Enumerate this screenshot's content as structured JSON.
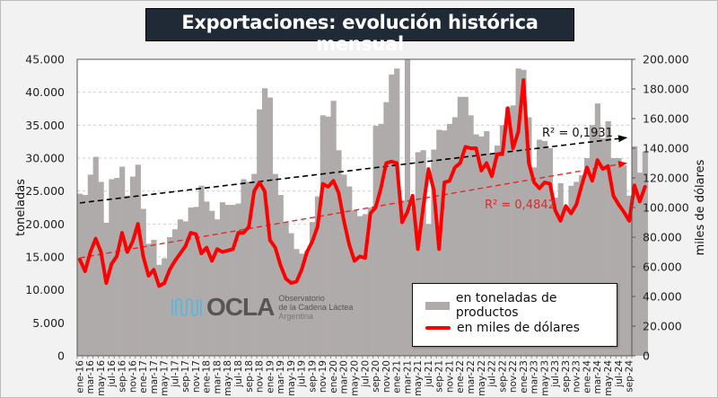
{
  "chart_data": {
    "type": "bar",
    "title": "Exportaciones: evolución histórica mensual",
    "xlabel": "",
    "ylabel": "toneladas",
    "y2label": "miles de dólares",
    "ylim": [
      0,
      45000
    ],
    "y2lim": [
      0,
      200000
    ],
    "yticks": [
      "0",
      "5.000",
      "10.000",
      "15.000",
      "20.000",
      "25.000",
      "30.000",
      "35.000",
      "40.000",
      "45.000"
    ],
    "y2ticks": [
      "0",
      "20.000",
      "40.000",
      "60.000",
      "80.000",
      "100.000",
      "120.000",
      "140.000",
      "160.000",
      "180.000",
      "200.000"
    ],
    "grid": true,
    "legend_position": "bottom-right",
    "categories": [
      "ene-16",
      "feb-16",
      "mar-16",
      "abr-16",
      "may-16",
      "jun-16",
      "jul-16",
      "ago-16",
      "sep-16",
      "oct-16",
      "nov-16",
      "dic-16",
      "ene-17",
      "feb-17",
      "mar-17",
      "abr-17",
      "may-17",
      "jun-17",
      "jul-17",
      "ago-17",
      "sep-17",
      "oct-17",
      "nov-17",
      "dic-17",
      "ene-18",
      "feb-18",
      "mar-18",
      "abr-18",
      "may-18",
      "jun-18",
      "jul-18",
      "ago-18",
      "sep-18",
      "oct-18",
      "nov-18",
      "dic-18",
      "ene-19",
      "feb-19",
      "mar-19",
      "abr-19",
      "may-19",
      "jun-19",
      "jul-19",
      "ago-19",
      "sep-19",
      "oct-19",
      "nov-19",
      "dic-19",
      "ene-20",
      "feb-20",
      "mar-20",
      "abr-20",
      "may-20",
      "jun-20",
      "jul-20",
      "ago-20",
      "sep-20",
      "oct-20",
      "nov-20",
      "dic-20",
      "ene-21",
      "feb-21",
      "mar-21",
      "abr-21",
      "may-21",
      "jun-21",
      "jul-21",
      "ago-21",
      "sep-21",
      "oct-21",
      "nov-21",
      "dic-21",
      "ene-22",
      "feb-22",
      "mar-22",
      "abr-22",
      "may-22",
      "jun-22",
      "jul-22",
      "ago-22",
      "sep-22",
      "oct-22",
      "nov-22",
      "dic-22",
      "ene-23",
      "feb-23",
      "mar-23",
      "abr-23",
      "may-23",
      "jun-23",
      "jul-23",
      "ago-23",
      "sep-23",
      "oct-23",
      "nov-23",
      "dic-23",
      "ene-24",
      "feb-24",
      "mar-24",
      "abr-24",
      "may-24",
      "jun-24",
      "jul-24",
      "ago-24",
      "sep-24"
    ],
    "xtick_labels": [
      "ene-16",
      "mar-16",
      "may-16",
      "jul-16",
      "sep-16",
      "nov-16",
      "ene-17",
      "mar-17",
      "may-17",
      "jul-17",
      "sep-17",
      "nov-17",
      "ene-18",
      "mar-18",
      "may-18",
      "jul-18",
      "sep-18",
      "nov-18",
      "ene-19",
      "mar-19",
      "may-19",
      "jul-19",
      "sep-19",
      "nov-19",
      "ene-20",
      "mar-20",
      "may-20",
      "jul-20",
      "sep-20",
      "nov-20",
      "ene-21",
      "mar-21",
      "may-21",
      "jul-21",
      "sep-21",
      "nov-21",
      "ene-22",
      "mar-22",
      "may-22",
      "jul-22",
      "sep-22",
      "nov-22",
      "ene-23",
      "mar-23",
      "may-23",
      "jul-23",
      "sep-23",
      "nov-23",
      "ene-24",
      "mar-24",
      "may-24",
      "jul-24",
      "sep-24"
    ],
    "series": [
      {
        "name": "en toneladas de productos",
        "type": "bar",
        "axis": "left",
        "color": "#b0abab",
        "values": [
          24600,
          24400,
          27500,
          30200,
          26400,
          20200,
          26800,
          27000,
          28700,
          24300,
          27200,
          29000,
          22300,
          17000,
          17600,
          13800,
          14800,
          18000,
          19200,
          20700,
          20400,
          22500,
          22600,
          25800,
          23400,
          22000,
          20700,
          23300,
          22900,
          22900,
          23100,
          26800,
          26400,
          27600,
          37400,
          40600,
          39200,
          27600,
          24400,
          20300,
          18600,
          16200,
          15500,
          15900,
          20300,
          24200,
          36500,
          36300,
          38700,
          31200,
          27500,
          25700,
          22100,
          21200,
          21500,
          22500,
          34900,
          35200,
          38500,
          42700,
          43600,
          23600,
          45000,
          22400,
          30900,
          31200,
          20000,
          31300,
          34300,
          34200,
          35200,
          36200,
          39300,
          39300,
          36500,
          33600,
          33300,
          34100,
          30600,
          31900,
          35000,
          37700,
          38000,
          43600,
          43400,
          36200,
          28600,
          32800,
          32600,
          31500,
          24000,
          26200,
          22500,
          25800,
          26400,
          27400,
          30000,
          35000,
          38300,
          33000,
          35600,
          30000,
          30000,
          28900,
          24300,
          31800,
          27800,
          31000
        ]
      },
      {
        "name": "en miles de dólares",
        "type": "line",
        "axis": "right",
        "color": "#ff0000",
        "values": [
          65000,
          57000,
          70000,
          79000,
          70000,
          49000,
          62000,
          67000,
          83000,
          70000,
          77000,
          89000,
          67000,
          54000,
          58000,
          47000,
          49000,
          58000,
          64000,
          69000,
          74000,
          83000,
          82000,
          69000,
          73000,
          64000,
          72000,
          70000,
          71000,
          72000,
          83000,
          83000,
          87000,
          111000,
          117000,
          111000,
          78000,
          73000,
          61000,
          52000,
          49000,
          50000,
          58000,
          70000,
          77000,
          87000,
          116000,
          114000,
          118000,
          110000,
          91000,
          75000,
          64000,
          67000,
          66000,
          96000,
          100000,
          113000,
          130000,
          131000,
          130000,
          90000,
          97000,
          108000,
          72000,
          100000,
          126000,
          112000,
          72000,
          117000,
          118000,
          127000,
          130000,
          141000,
          140000,
          140000,
          125000,
          130000,
          121000,
          136000,
          136000,
          167000,
          140000,
          151000,
          186000,
          130000,
          117000,
          113000,
          117000,
          116000,
          98000,
          91000,
          101000,
          96000,
          102000,
          115000,
          127000,
          118000,
          132000,
          126000,
          128000,
          108000,
          102000,
          97000,
          91000,
          115000,
          104000,
          114000
        ]
      }
    ],
    "trendlines": [
      {
        "series": "en toneladas de productos",
        "label": "R² = 0,1931",
        "color": "#000000",
        "style": "dashed",
        "start_value": 23200,
        "end_value": 33100
      },
      {
        "series": "en miles de dólares",
        "label": "R² = 0,4842",
        "color": "#ff0000",
        "style": "dashed",
        "start_value": 66000,
        "end_value": 130000
      }
    ]
  },
  "legend": {
    "items": [
      {
        "label": "en toneladas de productos"
      },
      {
        "label": "en miles de dólares"
      }
    ]
  },
  "logo": {
    "name": "OCLA",
    "line1": "Observatorio",
    "line2": "de la Cadena Láctea",
    "line3": "Argentina"
  }
}
